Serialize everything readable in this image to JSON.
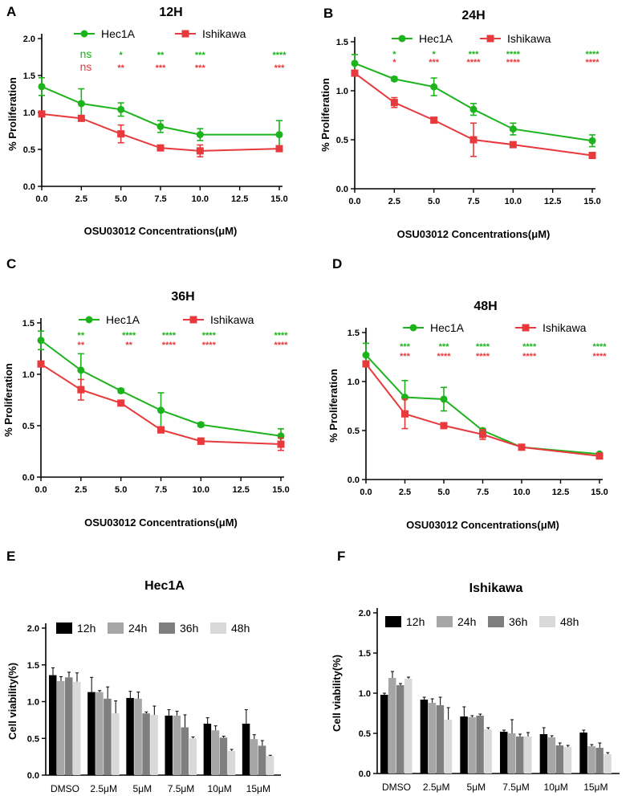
{
  "colors": {
    "hec1a": "#1db31d",
    "ishikawa": "#e8393c",
    "axis": "#000000",
    "bar_12h": "#000000",
    "bar_24h": "#a6a6a6",
    "bar_36h": "#7f7f7f",
    "bar_48h": "#d9d9d9"
  },
  "chart_data": [
    {
      "panel": "A",
      "type": "line",
      "title": "12H",
      "xlabel": "OSU03012 Concentrations(μM)",
      "ylabel": "% Proliferation",
      "xlim": [
        0,
        15
      ],
      "ylim": [
        0,
        2.0
      ],
      "xticks": [
        0,
        2.5,
        5,
        7.5,
        10,
        12.5,
        15
      ],
      "xtick_labels": [
        "0.0",
        "2.5",
        "5.0",
        "7.5",
        "10.0",
        "12.5",
        "15.0"
      ],
      "yticks": [
        0,
        0.5,
        1.0,
        1.5,
        2.0
      ],
      "ytick_labels": [
        "0.0",
        "0.5",
        "1.0",
        "1.5",
        "2.0"
      ],
      "legend": [
        "Hec1A",
        "Ishikawa"
      ],
      "series": [
        {
          "name": "Hec1A",
          "x": [
            0,
            2.5,
            5,
            7.5,
            10,
            15
          ],
          "y": [
            1.35,
            1.12,
            1.04,
            0.81,
            0.7,
            0.7
          ],
          "err": [
            0.12,
            0.2,
            0.09,
            0.08,
            0.08,
            0.19
          ],
          "sig": [
            "ns",
            "*",
            "**",
            "***",
            "****"
          ]
        },
        {
          "name": "Ishikawa",
          "x": [
            0,
            2.5,
            5,
            7.5,
            10,
            15
          ],
          "y": [
            0.98,
            0.92,
            0.71,
            0.52,
            0.48,
            0.51
          ],
          "err": [
            0.02,
            0.03,
            0.12,
            0.02,
            0.08,
            0.03
          ],
          "sig": [
            "ns",
            "**",
            "***",
            "***",
            "***"
          ]
        }
      ],
      "sig_x": [
        0,
        5,
        7.5,
        10,
        15
      ]
    },
    {
      "panel": "B",
      "type": "line",
      "title": "24H",
      "xlabel": "OSU03012 Concentrations(μM)",
      "ylabel": "% Proliferation",
      "xlim": [
        0,
        15
      ],
      "ylim": [
        0,
        1.5
      ],
      "xticks": [
        0,
        2.5,
        5,
        7.5,
        10,
        12.5,
        15
      ],
      "xtick_labels": [
        "0.0",
        "2.5",
        "5.0",
        "7.5",
        "10.0",
        "12.5",
        "15.0"
      ],
      "yticks": [
        0,
        0.5,
        1.0,
        1.5
      ],
      "ytick_labels": [
        "0.0",
        "0.5",
        "1.0",
        "1.5"
      ],
      "legend": [
        "Hec1A",
        "Ishikawa"
      ],
      "series": [
        {
          "name": "Hec1A",
          "x": [
            0,
            2.5,
            5,
            7.5,
            10,
            15
          ],
          "y": [
            1.28,
            1.12,
            1.04,
            0.81,
            0.61,
            0.49
          ],
          "err": [
            0.09,
            0.02,
            0.09,
            0.06,
            0.06,
            0.06
          ],
          "sig": [
            "*",
            "*",
            "***",
            "****",
            "****"
          ]
        },
        {
          "name": "Ishikawa",
          "x": [
            0,
            2.5,
            5,
            7.5,
            10,
            15
          ],
          "y": [
            1.18,
            0.88,
            0.7,
            0.5,
            0.45,
            0.34
          ],
          "err": [
            0.02,
            0.05,
            0.02,
            0.17,
            0.02,
            0.02
          ],
          "sig": [
            "*",
            "***",
            "****",
            "****",
            "****"
          ]
        }
      ],
      "sig_x": [
        2.5,
        5,
        7.5,
        10,
        15
      ]
    },
    {
      "panel": "C",
      "type": "line",
      "title": "36H",
      "xlabel": "OSU03012 Concentrations(μM)",
      "ylabel": "% Proliferation",
      "xlim": [
        0,
        15
      ],
      "ylim": [
        0,
        1.5
      ],
      "xticks": [
        0,
        2.5,
        5,
        7.5,
        10,
        12.5,
        15
      ],
      "xtick_labels": [
        "0.0",
        "2.5",
        "5.0",
        "7.5",
        "10.0",
        "12.5",
        "15.0"
      ],
      "yticks": [
        0,
        0.5,
        1.0,
        1.5
      ],
      "ytick_labels": [
        "0.0",
        "0.5",
        "1.0",
        "1.5"
      ],
      "legend": [
        "Hec1A",
        "Ishikawa"
      ],
      "series": [
        {
          "name": "Hec1A",
          "x": [
            0,
            2.5,
            5,
            7.5,
            10,
            15
          ],
          "y": [
            1.33,
            1.04,
            0.84,
            0.65,
            0.51,
            0.4
          ],
          "err": [
            0.09,
            0.16,
            0.02,
            0.17,
            0.02,
            0.07
          ],
          "sig": [
            "**",
            "****",
            "****",
            "****",
            "****"
          ]
        },
        {
          "name": "Ishikawa",
          "x": [
            0,
            2.5,
            5,
            7.5,
            10,
            15
          ],
          "y": [
            1.1,
            0.85,
            0.72,
            0.46,
            0.35,
            0.32
          ],
          "err": [
            0.02,
            0.1,
            0.02,
            0.03,
            0.03,
            0.06
          ],
          "sig": [
            "**",
            "**",
            "****",
            "****",
            "****"
          ]
        }
      ],
      "sig_x": [
        2.5,
        5.5,
        8,
        10.5,
        15
      ]
    },
    {
      "panel": "D",
      "type": "line",
      "title": "48H",
      "xlabel": "OSU03012 Concentrations(μM)",
      "ylabel": "% Proliferation",
      "xlim": [
        0,
        15
      ],
      "ylim": [
        0,
        1.5
      ],
      "xticks": [
        0,
        2.5,
        5,
        7.5,
        10,
        12.5,
        15
      ],
      "xtick_labels": [
        "0.0",
        "2.5",
        "5.0",
        "7.5",
        "10.0",
        "12.5",
        "15.0"
      ],
      "yticks": [
        0,
        0.5,
        1.0,
        1.5
      ],
      "ytick_labels": [
        "0.0",
        "0.5",
        "1.0",
        "1.5"
      ],
      "legend": [
        "Hec1A",
        "Ishikawa"
      ],
      "series": [
        {
          "name": "Hec1A",
          "x": [
            0,
            2.5,
            5,
            7.5,
            10,
            15
          ],
          "y": [
            1.27,
            0.84,
            0.82,
            0.5,
            0.33,
            0.26
          ],
          "err": [
            0.12,
            0.17,
            0.12,
            0.02,
            0.02,
            0.01
          ],
          "sig": [
            "***",
            "***",
            "****",
            "****",
            "****"
          ]
        },
        {
          "name": "Ishikawa",
          "x": [
            0,
            2.5,
            5,
            7.5,
            10,
            15
          ],
          "y": [
            1.18,
            0.67,
            0.55,
            0.46,
            0.33,
            0.24
          ],
          "err": [
            0.02,
            0.15,
            0.02,
            0.05,
            0.02,
            0.02
          ],
          "sig": [
            "***",
            "****",
            "****",
            "****",
            "****"
          ]
        }
      ],
      "sig_x": [
        2.5,
        5,
        7.5,
        10.5,
        15
      ]
    },
    {
      "panel": "E",
      "type": "bar",
      "title": "Hec1A",
      "xlabel": "",
      "ylabel": "Cell viability(%)",
      "ylim": [
        0,
        2.0
      ],
      "yticks": [
        0,
        0.5,
        1.0,
        1.5,
        2.0
      ],
      "ytick_labels": [
        "0.0",
        "0.5",
        "1.0",
        "1.5",
        "2.0"
      ],
      "categories": [
        "DMSO",
        "2.5μM",
        "5μM",
        "7.5μM",
        "10μM",
        "15μM"
      ],
      "series": [
        {
          "name": "12h",
          "values": [
            1.36,
            1.13,
            1.05,
            0.81,
            0.7,
            0.7
          ],
          "err": [
            0.1,
            0.2,
            0.09,
            0.08,
            0.08,
            0.19
          ]
        },
        {
          "name": "24h",
          "values": [
            1.28,
            1.13,
            1.04,
            0.81,
            0.61,
            0.49
          ],
          "err": [
            0.06,
            0.02,
            0.09,
            0.06,
            0.06,
            0.06
          ]
        },
        {
          "name": "36h",
          "values": [
            1.33,
            1.04,
            0.84,
            0.65,
            0.51,
            0.4
          ],
          "err": [
            0.07,
            0.16,
            0.02,
            0.17,
            0.02,
            0.07
          ]
        },
        {
          "name": "48h",
          "values": [
            1.27,
            0.84,
            0.82,
            0.5,
            0.33,
            0.26
          ],
          "err": [
            0.12,
            0.17,
            0.12,
            0.02,
            0.02,
            0.01
          ]
        }
      ]
    },
    {
      "panel": "F",
      "type": "bar",
      "title": "Ishikawa",
      "xlabel": "",
      "ylabel": "Cell viability(%)",
      "ylim": [
        0,
        2.0
      ],
      "yticks": [
        0,
        0.5,
        1.0,
        1.5,
        2.0
      ],
      "ytick_labels": [
        "0.0",
        "0.5",
        "1.0",
        "1.5",
        "2.0"
      ],
      "categories": [
        "DMSO",
        "2.5μM",
        "5μM",
        "7.5μM",
        "10μM",
        "15μM"
      ],
      "series": [
        {
          "name": "12h",
          "values": [
            0.98,
            0.92,
            0.71,
            0.52,
            0.49,
            0.51
          ],
          "err": [
            0.02,
            0.03,
            0.12,
            0.02,
            0.08,
            0.03
          ]
        },
        {
          "name": "24h",
          "values": [
            1.19,
            0.88,
            0.7,
            0.5,
            0.45,
            0.34
          ],
          "err": [
            0.08,
            0.05,
            0.02,
            0.17,
            0.02,
            0.02
          ]
        },
        {
          "name": "36h",
          "values": [
            1.1,
            0.85,
            0.72,
            0.46,
            0.35,
            0.32
          ],
          "err": [
            0.02,
            0.1,
            0.02,
            0.03,
            0.03,
            0.06
          ]
        },
        {
          "name": "48h",
          "values": [
            1.18,
            0.67,
            0.55,
            0.46,
            0.33,
            0.24
          ],
          "err": [
            0.02,
            0.15,
            0.02,
            0.05,
            0.02,
            0.02
          ]
        }
      ]
    }
  ]
}
